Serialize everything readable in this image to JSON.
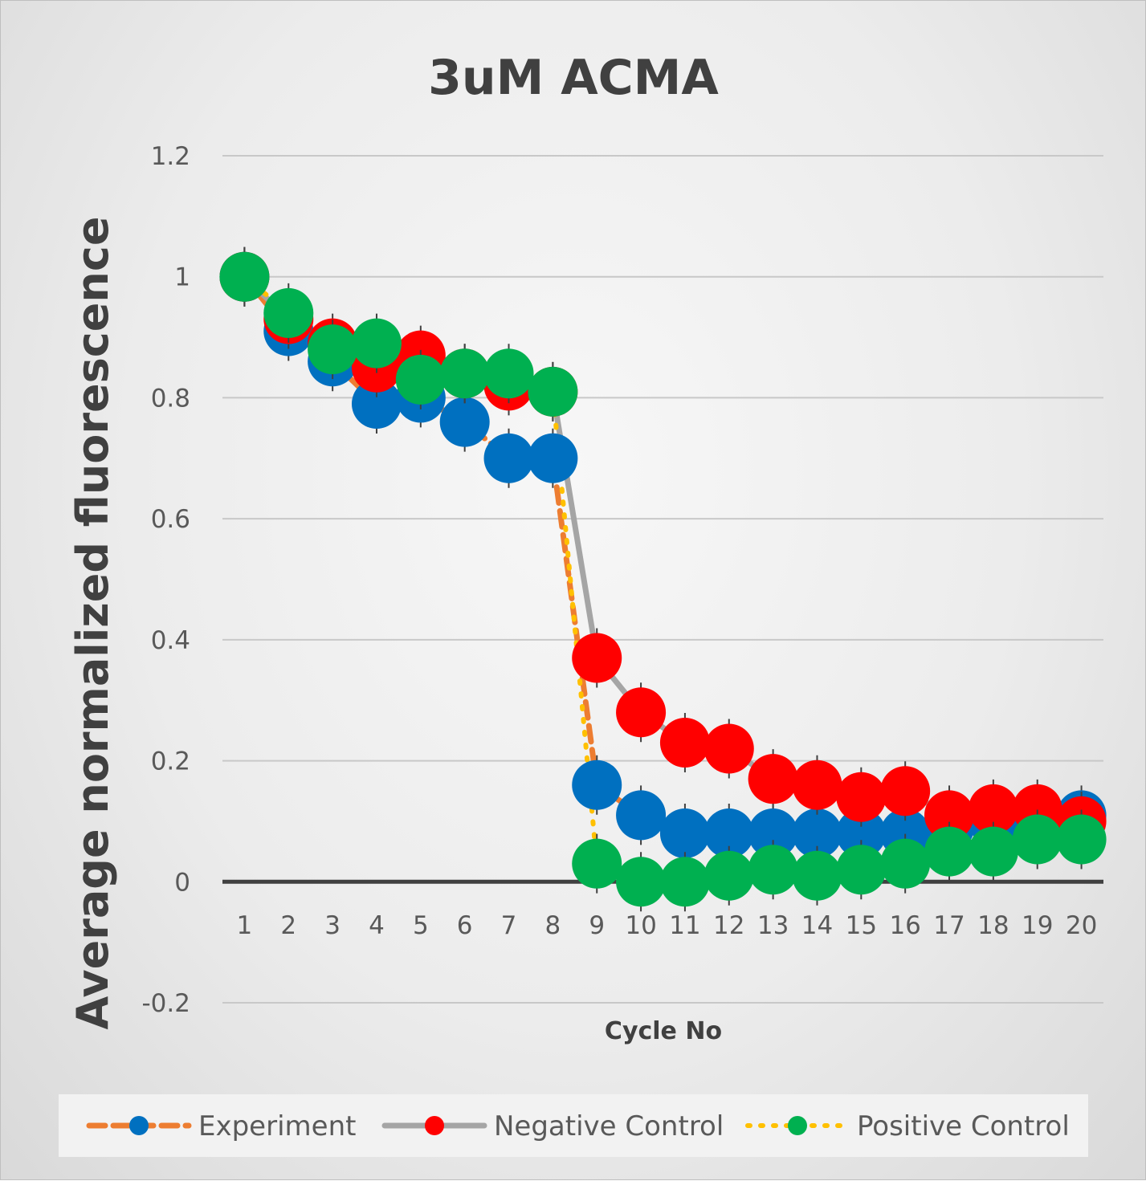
{
  "chart_data": {
    "type": "line",
    "title": "3uM ACMA",
    "xlabel": "Cycle No",
    "ylabel": "Average normalized fluorescence",
    "categories": [
      "1",
      "2",
      "3",
      "4",
      "5",
      "6",
      "7",
      "8",
      "9",
      "10",
      "11",
      "12",
      "13",
      "14",
      "15",
      "16",
      "17",
      "18",
      "19",
      "20"
    ],
    "ylim": [
      -0.2,
      1.2
    ],
    "yticks": [
      "1.2",
      "1",
      "0.8",
      "0.6",
      "0.4",
      "0.2",
      "0",
      "-0.2"
    ],
    "ytick_values": [
      1.2,
      1.0,
      0.8,
      0.6,
      0.4,
      0.2,
      0.0,
      -0.2
    ],
    "grid": true,
    "legend_position": "bottom",
    "series": [
      {
        "name": "Experiment",
        "line_color": "#ED7D31",
        "marker_color": "#0070C0",
        "line_style": "dashed",
        "values": [
          1.0,
          0.91,
          0.86,
          0.79,
          0.8,
          0.76,
          0.7,
          0.7,
          0.16,
          0.11,
          0.08,
          0.08,
          0.08,
          0.08,
          0.08,
          0.08,
          0.09,
          0.1,
          0.11,
          0.11
        ]
      },
      {
        "name": "Negative Control",
        "line_color": "#A5A5A5",
        "marker_color": "#FF0000",
        "line_style": "solid",
        "values": [
          1.0,
          0.93,
          0.89,
          0.85,
          0.87,
          0.84,
          0.82,
          0.81,
          0.37,
          0.28,
          0.23,
          0.22,
          0.17,
          0.16,
          0.14,
          0.15,
          0.11,
          0.12,
          0.12,
          0.1
        ]
      },
      {
        "name": "Positive Control",
        "line_color": "#FFC000",
        "marker_color": "#00B050",
        "line_style": "dotted",
        "values": [
          1.0,
          0.94,
          0.88,
          0.89,
          0.83,
          0.84,
          0.84,
          0.81,
          0.03,
          0.0,
          0.0,
          0.01,
          0.02,
          0.01,
          0.02,
          0.03,
          0.05,
          0.05,
          0.07,
          0.07
        ]
      }
    ]
  }
}
